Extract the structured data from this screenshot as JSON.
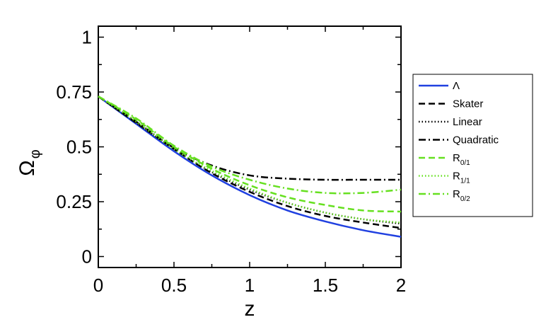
{
  "chart_data": {
    "type": "line",
    "title": "",
    "xlabel": "z",
    "ylabel": {
      "main": "Ω",
      "sub": "φ"
    },
    "xlim": [
      0,
      2
    ],
    "ylim": [
      -0.05,
      1.05
    ],
    "xticks": [
      0,
      0.5,
      1,
      1.5,
      2
    ],
    "xtick_labels": [
      "0",
      "0.5",
      "1",
      "1.5",
      "2"
    ],
    "yticks": [
      0,
      0.25,
      0.5,
      0.75,
      1
    ],
    "ytick_labels": [
      "0",
      "0.25",
      "0.5",
      "0.75",
      "1"
    ],
    "grid": false,
    "legend_position": "outside-right",
    "series": [
      {
        "name": "Λ",
        "sub": "",
        "color": "#2040e0",
        "dash": "solid",
        "x": [
          0,
          0.25,
          0.5,
          0.75,
          1.0,
          1.25,
          1.5,
          1.75,
          2.0
        ],
        "y": [
          0.73,
          0.605,
          0.48,
          0.37,
          0.28,
          0.21,
          0.16,
          0.12,
          0.09
        ]
      },
      {
        "name": "Skater",
        "sub": "",
        "color": "#000000",
        "dash": "dashed",
        "x": [
          0,
          0.25,
          0.5,
          0.75,
          1.0,
          1.25,
          1.5,
          1.75,
          2.0
        ],
        "y": [
          0.73,
          0.61,
          0.49,
          0.38,
          0.295,
          0.23,
          0.185,
          0.155,
          0.13
        ]
      },
      {
        "name": "Linear",
        "sub": "",
        "color": "#000000",
        "dash": "dotted",
        "x": [
          0,
          0.25,
          0.5,
          0.75,
          1.0,
          1.25,
          1.5,
          1.75,
          2.0
        ],
        "y": [
          0.73,
          0.61,
          0.49,
          0.385,
          0.305,
          0.245,
          0.2,
          0.17,
          0.15
        ]
      },
      {
        "name": "Quadratic",
        "sub": "",
        "color": "#000000",
        "dash": "dashdot",
        "x": [
          0,
          0.25,
          0.5,
          0.75,
          1.0,
          1.25,
          1.5,
          1.75,
          2.0
        ],
        "y": [
          0.73,
          0.615,
          0.495,
          0.415,
          0.37,
          0.355,
          0.35,
          0.35,
          0.35
        ]
      },
      {
        "name": "R",
        "sub": "0/1",
        "color": "#66e020",
        "dash": "dashed",
        "x": [
          0,
          0.25,
          0.5,
          0.75,
          1.0,
          1.25,
          1.5,
          1.75,
          2.0
        ],
        "y": [
          0.73,
          0.625,
          0.5,
          0.4,
          0.325,
          0.27,
          0.235,
          0.21,
          0.205
        ]
      },
      {
        "name": "R",
        "sub": "1/1",
        "color": "#66e020",
        "dash": "dotted",
        "x": [
          0,
          0.25,
          0.5,
          0.75,
          1.0,
          1.25,
          1.5,
          1.75,
          2.0
        ],
        "y": [
          0.73,
          0.615,
          0.49,
          0.39,
          0.31,
          0.245,
          0.2,
          0.17,
          0.155
        ]
      },
      {
        "name": "R",
        "sub": "0/2",
        "color": "#66e020",
        "dash": "dashdot",
        "x": [
          0,
          0.25,
          0.5,
          0.75,
          1.0,
          1.25,
          1.5,
          1.75,
          2.0
        ],
        "y": [
          0.73,
          0.63,
          0.505,
          0.41,
          0.35,
          0.31,
          0.29,
          0.29,
          0.305
        ]
      }
    ]
  }
}
